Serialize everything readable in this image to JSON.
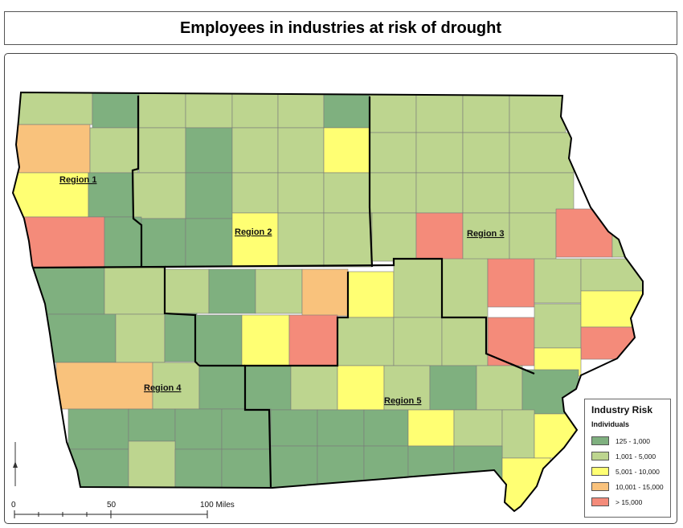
{
  "title": "Employees in industries at risk of drought",
  "colors": {
    "c1": "#7fb07f",
    "c2": "#bdd58f",
    "c3": "#ffff73",
    "c4": "#f9c27c",
    "c5": "#f48b7a",
    "border": "#7a7a7a",
    "region_border": "#000000"
  },
  "regions": [
    {
      "label": "Region 1"
    },
    {
      "label": "Region 2"
    },
    {
      "label": "Region 3"
    },
    {
      "label": "Region 4"
    },
    {
      "label": "Region 5"
    }
  ],
  "legend": {
    "title": "Industry Risk",
    "subtitle": "Individuals",
    "items": [
      {
        "label": "125 - 1,000",
        "color_key": "c1"
      },
      {
        "label": "1,001 - 5,000",
        "color_key": "c2"
      },
      {
        "label": "5,001 - 10,000",
        "color_key": "c3"
      },
      {
        "label": "10,001 - 15,000",
        "color_key": "c4"
      },
      {
        "label": "> 15,000",
        "color_key": "c5"
      }
    ]
  },
  "scale_bar": {
    "ticks": [
      "0",
      "50",
      "100 Miles"
    ]
  },
  "north_arrow_icon": "north-arrow-icon"
}
